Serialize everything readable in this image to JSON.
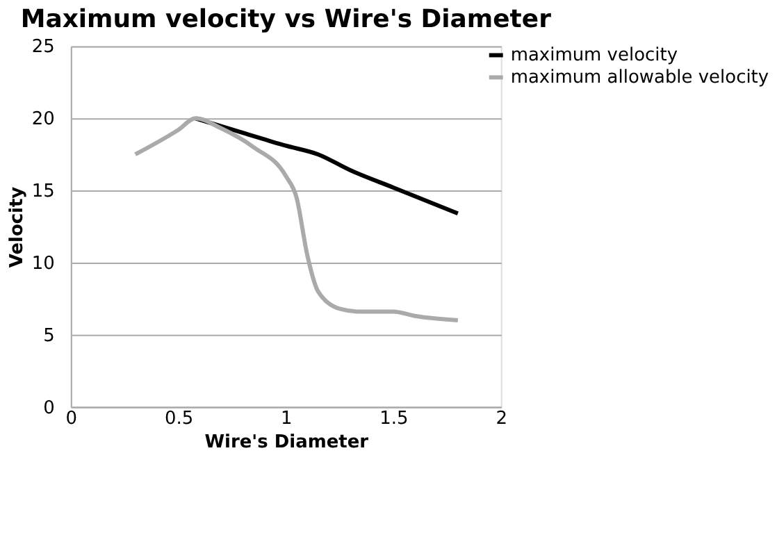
{
  "chart_data": {
    "type": "line",
    "title": "Maximum velocity vs Wire's Diameter",
    "xlabel": "Wire's Diameter",
    "ylabel": "Velocity",
    "series": [
      {
        "name": "maximum velocity",
        "color": "#000000",
        "x": [
          0.58,
          0.8,
          1.0,
          1.15,
          1.3,
          1.5,
          1.8
        ],
        "values": [
          20,
          19.0,
          18.1,
          17.5,
          16.4,
          15.2,
          13.4
        ]
      },
      {
        "name": "maximum allowable velocity",
        "color": "#aaaaaa",
        "x": [
          0.3,
          0.5,
          0.58,
          0.7,
          0.85,
          1.0,
          1.05,
          1.1,
          1.15,
          1.25,
          1.35,
          1.5,
          1.6,
          1.8
        ],
        "values": [
          17.5,
          19.2,
          20,
          19.3,
          18.0,
          16.0,
          14.5,
          10.5,
          8.0,
          6.8,
          6.6,
          6.6,
          6.3,
          6.0
        ]
      }
    ],
    "xlim": [
      0,
      2
    ],
    "xticks": [
      0,
      0.5,
      1,
      1.5,
      2
    ],
    "ylim": [
      0,
      25
    ],
    "yticks": [
      0,
      5,
      10,
      15,
      20,
      25
    ],
    "grid": "y",
    "legend": "top right",
    "marker": "none",
    "line_style": "solid"
  }
}
